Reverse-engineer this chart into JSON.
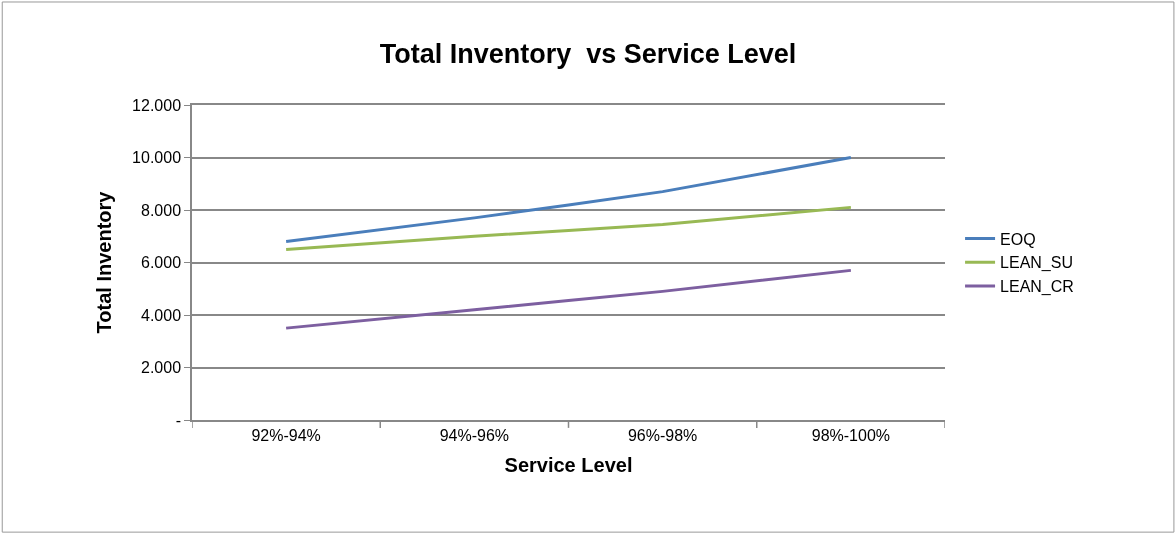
{
  "chart_data": {
    "type": "line",
    "title": "Total Inventory  vs Service Level",
    "xlabel": "Service Level",
    "ylabel": "Total Inventory",
    "categories": [
      "92%-94%",
      "94%-96%",
      "96%-98%",
      "98%-100%"
    ],
    "series": [
      {
        "name": "EOQ",
        "color": "#4a7ebb",
        "values": [
          6800,
          7700,
          8700,
          10000
        ]
      },
      {
        "name": "LEAN_SU",
        "color": "#98b954",
        "values": [
          6500,
          7000,
          7450,
          8100
        ]
      },
      {
        "name": "LEAN_CR",
        "color": "#7d5fa0",
        "values": [
          3500,
          4200,
          4900,
          5700
        ]
      }
    ],
    "ylim": [
      0,
      12000
    ],
    "yticks": [
      {
        "value": 0,
        "label": "-"
      },
      {
        "value": 2000,
        "label": "2.000"
      },
      {
        "value": 4000,
        "label": "4.000"
      },
      {
        "value": 6000,
        "label": "6.000"
      },
      {
        "value": 8000,
        "label": "8.000"
      },
      {
        "value": 10000,
        "label": "10.000"
      },
      {
        "value": 12000,
        "label": "12.000"
      }
    ],
    "grid": "y",
    "legend": "right",
    "marker": "none",
    "line_style": "solid"
  }
}
